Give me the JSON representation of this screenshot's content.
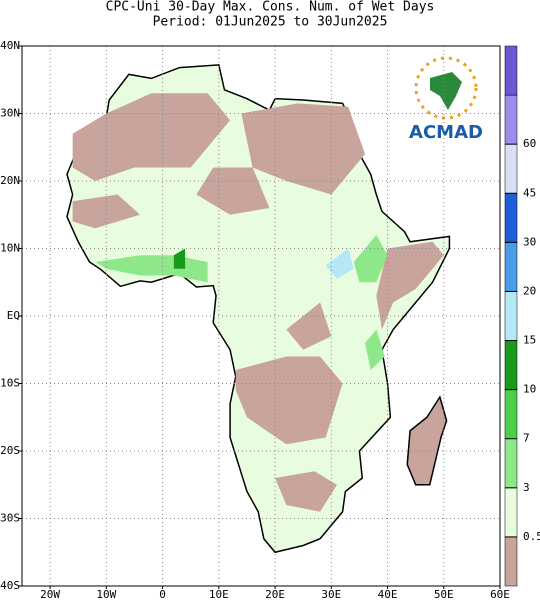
{
  "map_data": {
    "title": "CPC-Uni 30-Day Max. Cons. Num. of Wet Days",
    "subtitle": "Period: 01Jun2025 to 30Jun2025",
    "logo": "ACMAD",
    "xlim": [
      -25,
      60
    ],
    "ylim": [
      -40,
      40
    ],
    "xticks": [
      {
        "value": -20,
        "label": "20W"
      },
      {
        "value": -10,
        "label": "10W"
      },
      0,
      {
        "value": 10,
        "label": "10E"
      },
      {
        "value": 20,
        "label": "20E"
      },
      {
        "value": 30,
        "label": "30E"
      },
      {
        "value": 40,
        "label": "40E"
      },
      {
        "value": 50,
        "label": "50E"
      },
      {
        "value": 60,
        "label": "60E"
      }
    ],
    "yticks": [
      {
        "value": 40,
        "label": "40N"
      },
      {
        "value": 30,
        "label": "30N"
      },
      {
        "value": 20,
        "label": "20N"
      },
      {
        "value": 10,
        "label": "10N"
      },
      {
        "value": 0,
        "label": "EQ"
      },
      {
        "value": -10,
        "label": "10S"
      },
      {
        "value": -20,
        "label": "20S"
      },
      {
        "value": -30,
        "label": "30S"
      },
      {
        "value": -40,
        "label": "40S"
      }
    ],
    "grid": true,
    "colorbar": {
      "levels": [
        0.5,
        3,
        7,
        10,
        15,
        20,
        30,
        45,
        60
      ],
      "colors": [
        "#c8a49c",
        "#e8fce0",
        "#8ee88a",
        "#4cd04c",
        "#1a9a1a",
        "#b4e8f4",
        "#4a9ee8",
        "#1e5ed8",
        "#dcdff4",
        "#9a90ec",
        "#6a58d4"
      ]
    }
  }
}
